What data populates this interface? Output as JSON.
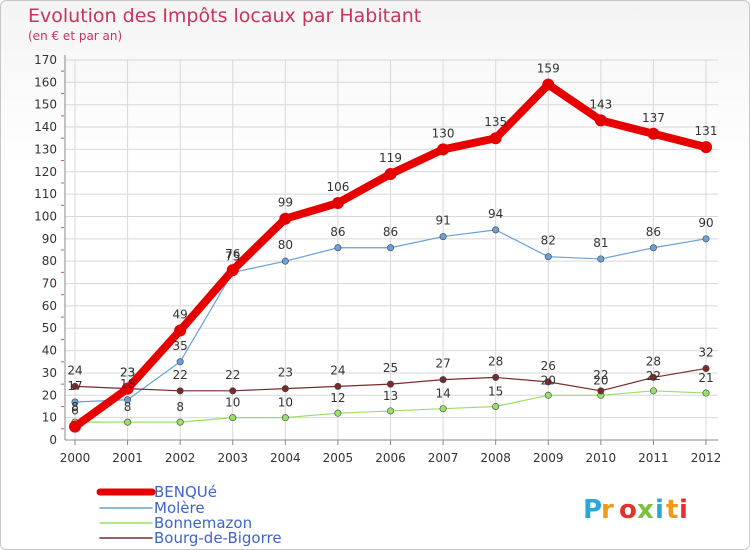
{
  "header": {
    "title": "Evolution des Impôts locaux par Habitant",
    "subtitle": "(en € et par an)"
  },
  "logo": {
    "text": "Proxiti"
  },
  "chart_data": {
    "type": "line",
    "title": "Evolution des Impôts locaux par Habitant",
    "subtitle": "(en € et par an)",
    "x": [
      "2000",
      "2001",
      "2002",
      "2003",
      "2004",
      "2005",
      "2006",
      "2007",
      "2008",
      "2009",
      "2010",
      "2011",
      "2012"
    ],
    "ylim": [
      0,
      170
    ],
    "yticks": [
      0,
      10,
      20,
      30,
      40,
      50,
      60,
      70,
      80,
      90,
      100,
      110,
      120,
      130,
      140,
      150,
      160,
      170
    ],
    "grid": true,
    "legend_position": "bottom-left",
    "series": [
      {
        "name": "BENQUé",
        "color": "#e60000",
        "values": [
          6,
          23,
          49,
          76,
          99,
          106,
          119,
          130,
          135,
          159,
          143,
          137,
          131
        ]
      },
      {
        "name": "Molère",
        "color": "#6aa0d8",
        "values": [
          17,
          18,
          35,
          75,
          80,
          86,
          86,
          91,
          94,
          82,
          81,
          86,
          90
        ]
      },
      {
        "name": "Bonnemazon",
        "color": "#99e066",
        "values": [
          8,
          8,
          8,
          10,
          10,
          12,
          13,
          14,
          15,
          20,
          20,
          22,
          21
        ]
      },
      {
        "name": "Bourg-de-Bigorre",
        "color": "#7a2a2a",
        "values": [
          24,
          23,
          22,
          22,
          23,
          24,
          25,
          27,
          28,
          26,
          22,
          28,
          32
        ]
      }
    ]
  }
}
